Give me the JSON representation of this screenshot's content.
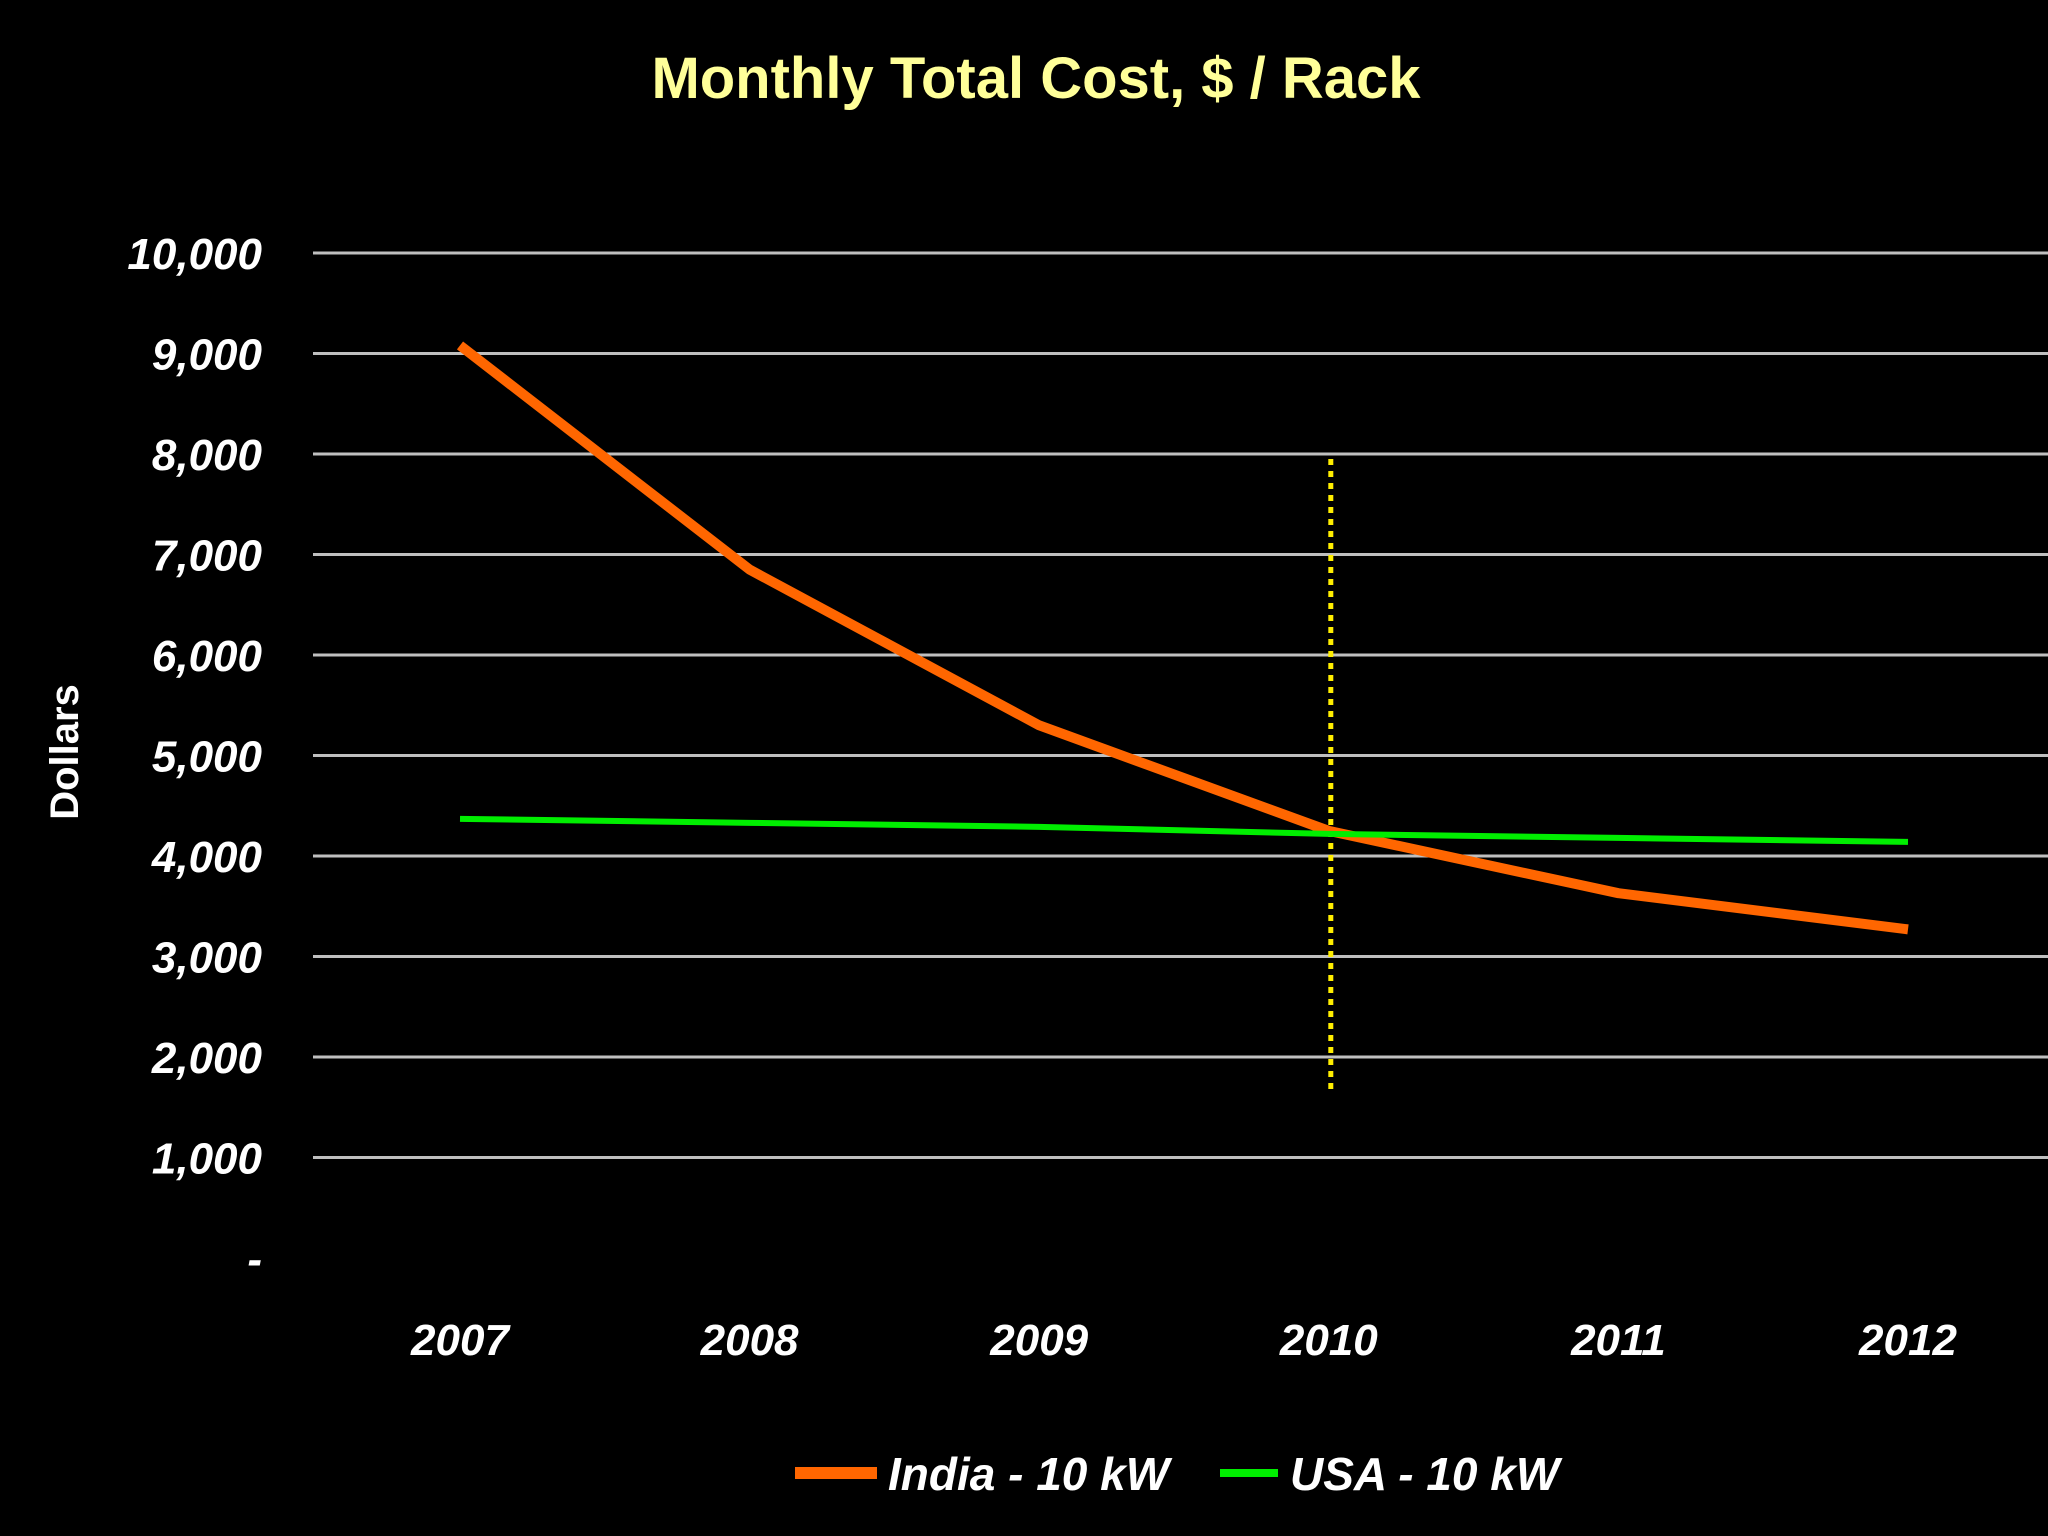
{
  "chart_data": {
    "type": "line",
    "title": "Monthly Total Cost, $ / Rack",
    "ylabel": "Dollars",
    "xlabel": "",
    "categories": [
      "2007",
      "2008",
      "2009",
      "2010",
      "2011",
      "2012"
    ],
    "ylim": [
      0,
      10000
    ],
    "yticks": [
      {
        "value": 0,
        "label": "-"
      },
      {
        "value": 1000,
        "label": "1,000"
      },
      {
        "value": 2000,
        "label": "2,000"
      },
      {
        "value": 3000,
        "label": "3,000"
      },
      {
        "value": 4000,
        "label": "4,000"
      },
      {
        "value": 5000,
        "label": "5,000"
      },
      {
        "value": 6000,
        "label": "6,000"
      },
      {
        "value": 7000,
        "label": "7,000"
      },
      {
        "value": 8000,
        "label": "8,000"
      },
      {
        "value": 9000,
        "label": "9,000"
      },
      {
        "value": 10000,
        "label": "10,000"
      }
    ],
    "grid": true,
    "legend_position": "bottom",
    "series": [
      {
        "name": "India - 10 kW",
        "color": "#ff6600",
        "values": [
          9080,
          6850,
          5300,
          4250,
          3630,
          3270
        ]
      },
      {
        "name": "USA - 10 kW",
        "color": "#00ee00",
        "values": [
          4370,
          4330,
          4290,
          4220,
          4180,
          4140
        ]
      }
    ],
    "annotations": [
      {
        "type": "vertical-dotted-line",
        "x": "2010",
        "y_from": 1650,
        "y_to": 7950,
        "color": "#ffee00"
      }
    ],
    "colors": {
      "background": "#000000",
      "title": "#ffff99",
      "text": "#ffffff",
      "grid": "#bfbfbf"
    }
  }
}
